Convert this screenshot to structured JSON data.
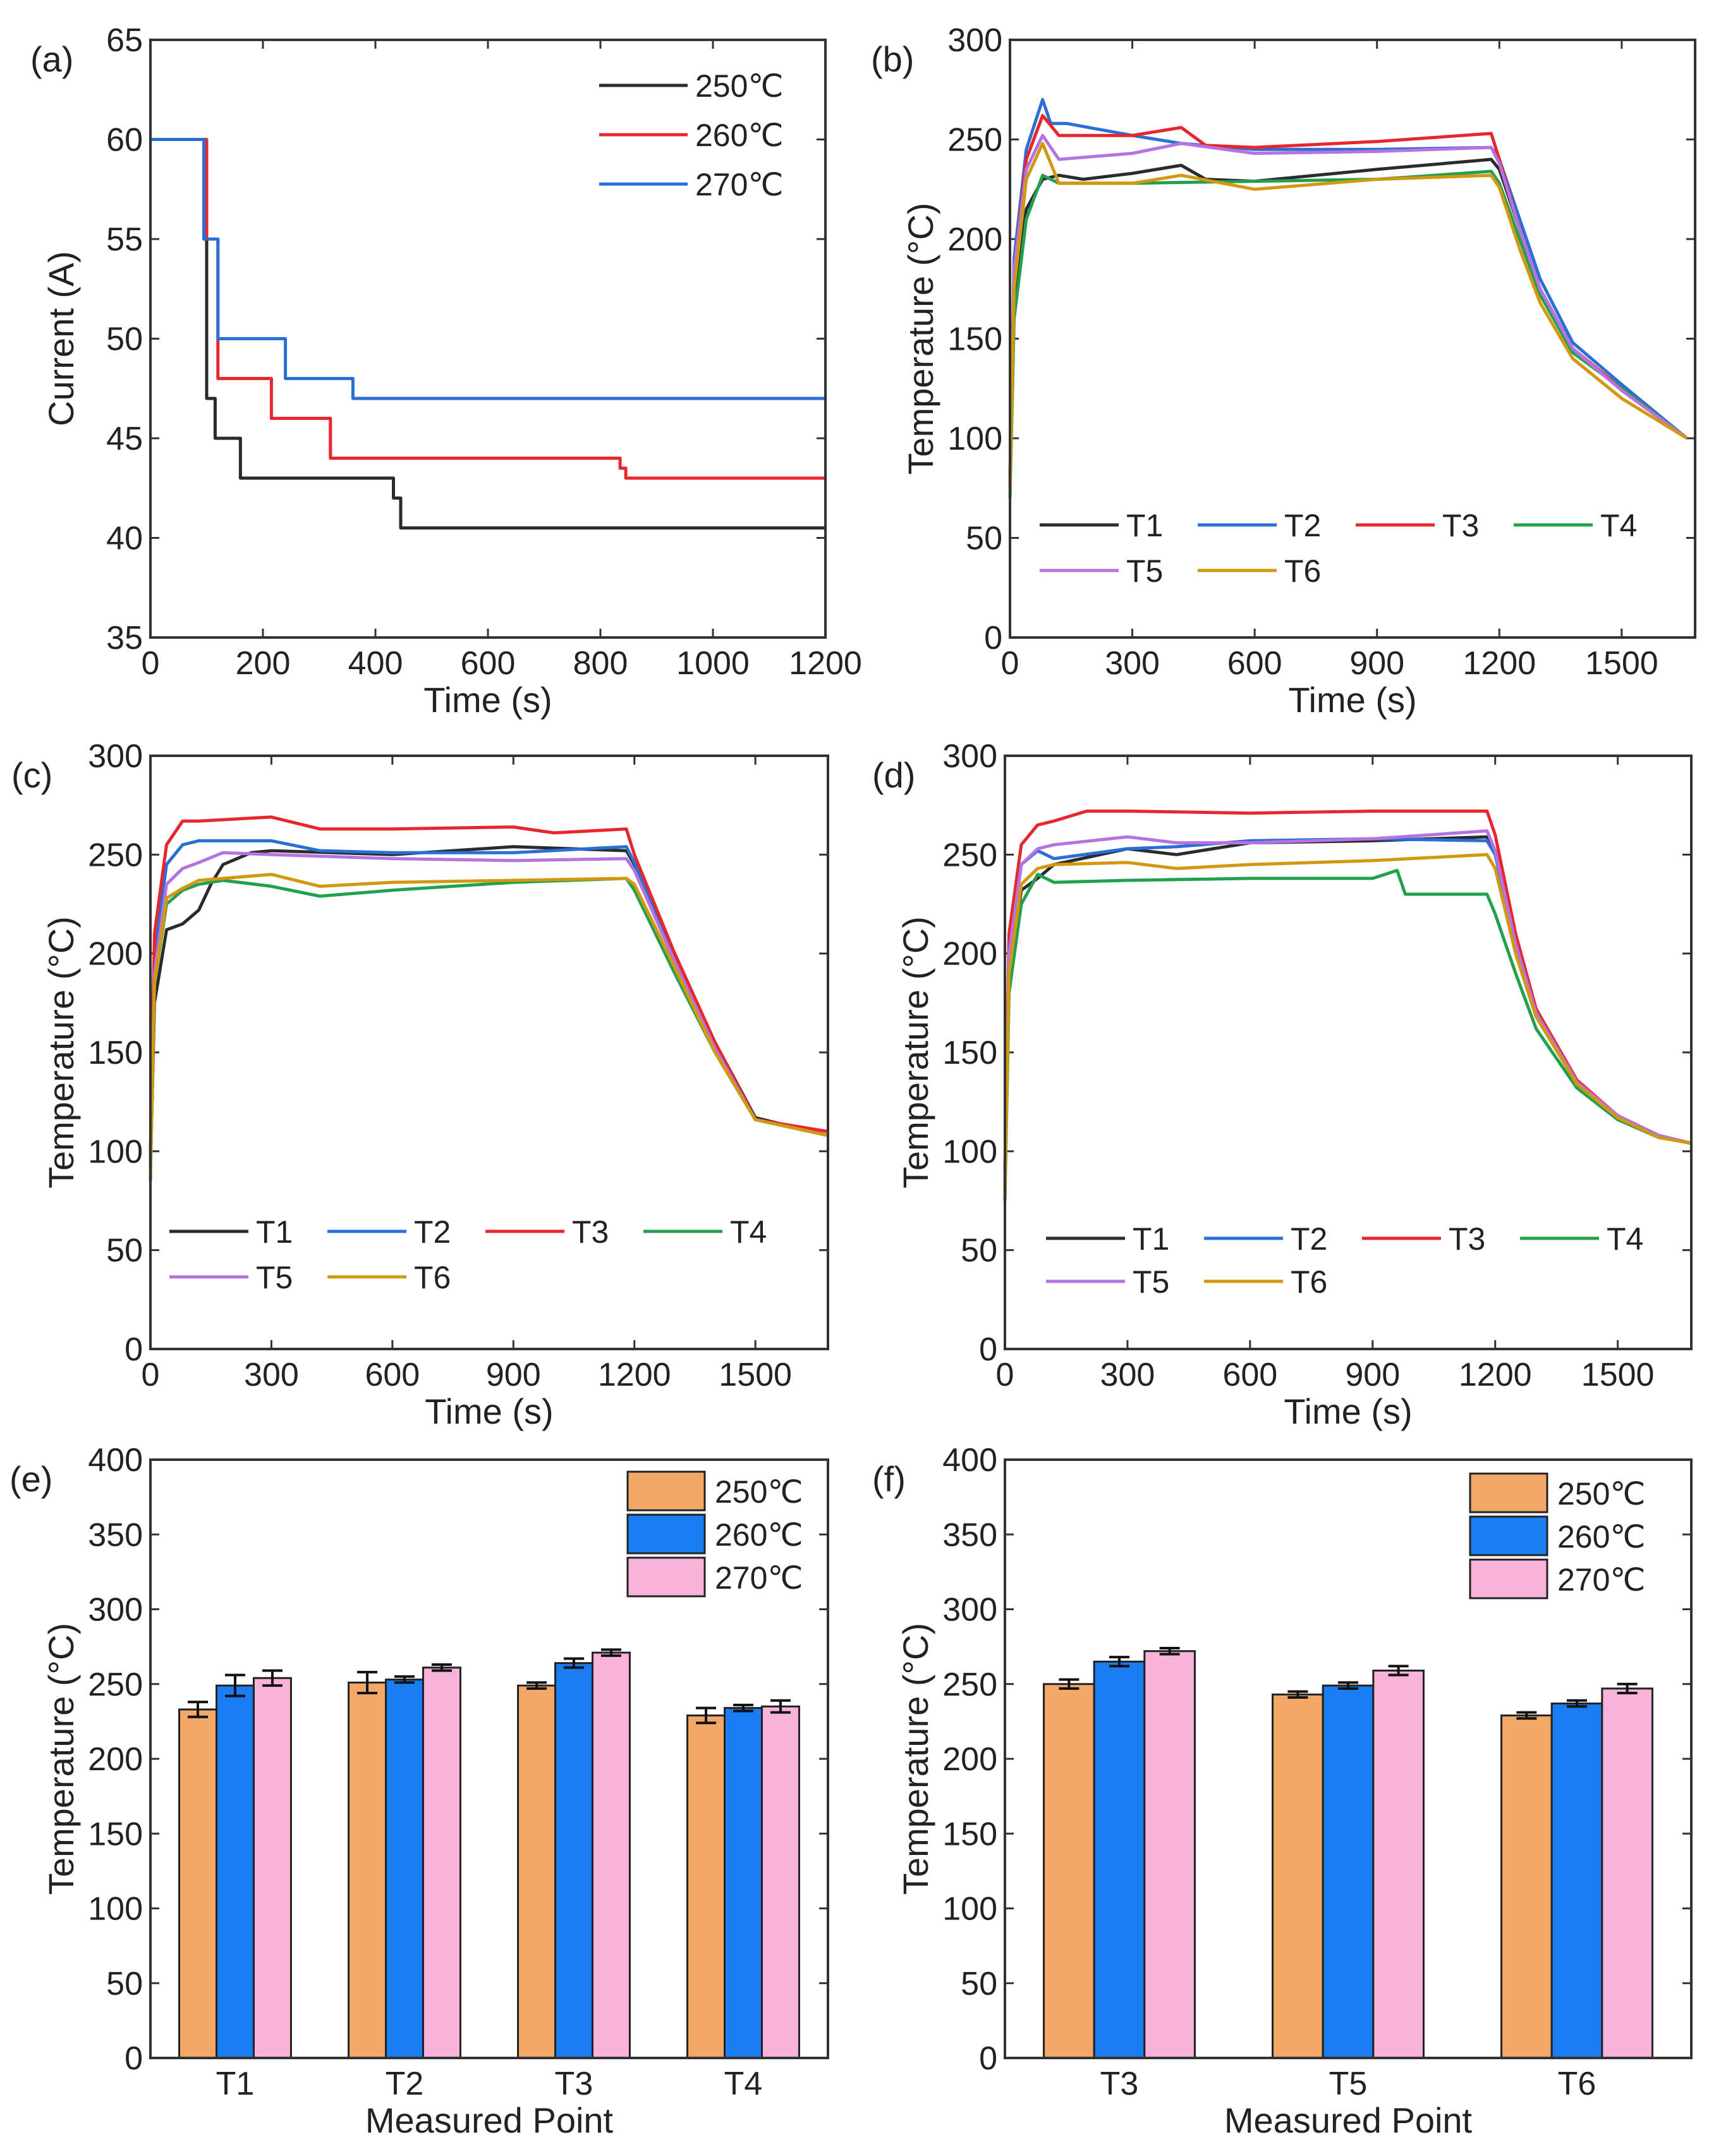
{
  "chart_data": [
    {
      "panel": "(a)",
      "type": "line",
      "xlabel": "Time (s)",
      "ylabel": "Current (A)",
      "xlim": [
        0,
        1200
      ],
      "ylim": [
        35,
        65
      ],
      "xticks": [
        0,
        200,
        400,
        600,
        800,
        1000,
        1200
      ],
      "yticks": [
        35,
        40,
        45,
        50,
        55,
        60,
        65
      ],
      "step": true,
      "series": [
        {
          "name": "250℃",
          "color": "#2b2b2b",
          "x": [
            0,
            80,
            95,
            100,
            115,
            160,
            420,
            432,
            445,
            1200
          ],
          "y": [
            60,
            60,
            55,
            47,
            45,
            43,
            43,
            42,
            40.5,
            40.5
          ]
        },
        {
          "name": "260℃",
          "color": "#e8262e",
          "x": [
            0,
            80,
            100,
            120,
            215,
            320,
            820,
            835,
            845,
            1200
          ],
          "y": [
            60,
            60,
            55,
            48,
            46,
            44,
            44,
            43.5,
            43,
            43
          ]
        },
        {
          "name": "270℃",
          "color": "#2a6fd6",
          "x": [
            0,
            80,
            95,
            120,
            240,
            360,
            1200
          ],
          "y": [
            60,
            60,
            55,
            50,
            48,
            47,
            47
          ]
        }
      ]
    },
    {
      "panel": "(b)",
      "type": "line",
      "xlabel": "Time (s)",
      "ylabel": "Temperature (°C)",
      "xlim": [
        0,
        1680
      ],
      "ylim": [
        0,
        300
      ],
      "xticks": [
        0,
        300,
        600,
        900,
        1200,
        1500
      ],
      "yticks": [
        0,
        50,
        100,
        150,
        200,
        250,
        300
      ],
      "step": false,
      "series": [
        {
          "name": "T1",
          "color": "#2b2b2b",
          "x": [
            0,
            10,
            40,
            80,
            120,
            180,
            300,
            420,
            480,
            600,
            900,
            1180,
            1200,
            1250,
            1300,
            1380,
            1500,
            1660
          ],
          "y": [
            75,
            170,
            215,
            230,
            232,
            230,
            233,
            237,
            230,
            229,
            235,
            240,
            235,
            205,
            175,
            145,
            125,
            100
          ]
        },
        {
          "name": "T2",
          "color": "#2a6fd6",
          "x": [
            0,
            10,
            40,
            80,
            100,
            140,
            300,
            420,
            600,
            900,
            1180,
            1200,
            1250,
            1300,
            1380,
            1500,
            1660
          ],
          "y": [
            80,
            190,
            245,
            270,
            258,
            258,
            252,
            248,
            245,
            245,
            246,
            240,
            210,
            180,
            148,
            127,
            100
          ]
        },
        {
          "name": "T3",
          "color": "#e8262e",
          "x": [
            0,
            10,
            40,
            80,
            120,
            300,
            420,
            480,
            600,
            900,
            1180,
            1200,
            1250,
            1300,
            1380,
            1500,
            1660
          ],
          "y": [
            80,
            185,
            240,
            262,
            252,
            252,
            256,
            247,
            246,
            249,
            253,
            240,
            205,
            175,
            145,
            125,
            100
          ]
        },
        {
          "name": "T4",
          "color": "#22a050",
          "x": [
            0,
            10,
            40,
            80,
            120,
            300,
            600,
            900,
            1180,
            1200,
            1250,
            1300,
            1380,
            1500,
            1660
          ],
          "y": [
            70,
            160,
            210,
            232,
            228,
            228,
            229,
            230,
            234,
            228,
            200,
            172,
            143,
            125,
            100
          ]
        },
        {
          "name": "T5",
          "color": "#b572e0",
          "x": [
            0,
            10,
            40,
            80,
            120,
            300,
            420,
            600,
            900,
            1180,
            1200,
            1250,
            1300,
            1380,
            1500,
            1660
          ],
          "y": [
            80,
            185,
            235,
            252,
            240,
            243,
            248,
            243,
            244,
            246,
            238,
            205,
            175,
            145,
            124,
            100
          ]
        },
        {
          "name": "T6",
          "color": "#d2980f",
          "x": [
            0,
            10,
            40,
            80,
            120,
            300,
            420,
            600,
            900,
            1180,
            1200,
            1250,
            1300,
            1380,
            1500,
            1660
          ],
          "y": [
            75,
            175,
            230,
            248,
            228,
            228,
            232,
            225,
            230,
            232,
            226,
            195,
            168,
            140,
            120,
            100
          ]
        }
      ]
    },
    {
      "panel": "(c)",
      "type": "line",
      "xlabel": "Time (s)",
      "ylabel": "Temperature (°C)",
      "xlim": [
        0,
        1680
      ],
      "ylim": [
        0,
        300
      ],
      "xticks": [
        0,
        300,
        600,
        900,
        1200,
        1500
      ],
      "yticks": [
        0,
        50,
        100,
        150,
        200,
        250,
        300
      ],
      "step": false,
      "series": [
        {
          "name": "T1",
          "color": "#2b2b2b",
          "x": [
            0,
            10,
            40,
            80,
            120,
            150,
            180,
            250,
            300,
            600,
            900,
            1180,
            1200,
            1300,
            1400,
            1500,
            1680
          ],
          "y": [
            90,
            175,
            212,
            215,
            222,
            235,
            245,
            251,
            252,
            250,
            254,
            252,
            245,
            200,
            155,
            117,
            108
          ]
        },
        {
          "name": "T2",
          "color": "#2a6fd6",
          "x": [
            0,
            10,
            40,
            80,
            120,
            300,
            420,
            600,
            900,
            1180,
            1200,
            1300,
            1400,
            1500,
            1680
          ],
          "y": [
            95,
            200,
            245,
            255,
            257,
            257,
            252,
            251,
            251,
            254,
            246,
            198,
            152,
            116,
            108
          ]
        },
        {
          "name": "T3",
          "color": "#e8262e",
          "x": [
            0,
            10,
            40,
            80,
            120,
            300,
            420,
            600,
            900,
            1000,
            1180,
            1200,
            1300,
            1400,
            1500,
            1680
          ],
          "y": [
            100,
            210,
            255,
            267,
            267,
            269,
            263,
            263,
            264,
            261,
            263,
            250,
            200,
            155,
            116,
            110
          ]
        },
        {
          "name": "T4",
          "color": "#22a050",
          "x": [
            0,
            10,
            40,
            80,
            120,
            180,
            300,
            420,
            600,
            900,
            1180,
            1200,
            1300,
            1400,
            1500,
            1680
          ],
          "y": [
            85,
            185,
            225,
            232,
            235,
            237,
            234,
            229,
            232,
            236,
            238,
            232,
            190,
            150,
            116,
            108
          ]
        },
        {
          "name": "T5",
          "color": "#b572e0",
          "x": [
            0,
            10,
            40,
            80,
            120,
            180,
            300,
            600,
            900,
            1180,
            1200,
            1300,
            1400,
            1500,
            1680
          ],
          "y": [
            90,
            190,
            235,
            243,
            246,
            251,
            250,
            248,
            247,
            248,
            242,
            196,
            152,
            116,
            108
          ]
        },
        {
          "name": "T6",
          "color": "#d2980f",
          "x": [
            0,
            10,
            40,
            80,
            120,
            300,
            420,
            600,
            900,
            1180,
            1200,
            1300,
            1400,
            1500,
            1680
          ],
          "y": [
            88,
            185,
            228,
            233,
            237,
            240,
            234,
            236,
            237,
            238,
            235,
            193,
            150,
            116,
            108
          ]
        }
      ]
    },
    {
      "panel": "(d)",
      "type": "line",
      "xlabel": "Time (s)",
      "ylabel": "Temperature (°C)",
      "xlim": [
        0,
        1680
      ],
      "ylim": [
        0,
        300
      ],
      "xticks": [
        0,
        300,
        600,
        900,
        1200,
        1500
      ],
      "yticks": [
        0,
        50,
        100,
        150,
        200,
        250,
        300
      ],
      "step": false,
      "series": [
        {
          "name": "T1",
          "color": "#2b2b2b",
          "x": [
            0,
            10,
            40,
            80,
            120,
            300,
            420,
            600,
            900,
            1180,
            1200,
            1250,
            1300,
            1400,
            1500,
            1600,
            1680
          ],
          "y": [
            80,
            190,
            232,
            238,
            245,
            253,
            250,
            256,
            257,
            259,
            252,
            205,
            170,
            135,
            118,
            108,
            104
          ]
        },
        {
          "name": "T2",
          "color": "#2a6fd6",
          "x": [
            0,
            10,
            40,
            80,
            120,
            300,
            420,
            600,
            900,
            1180,
            1200,
            1250,
            1300,
            1400,
            1500,
            1600,
            1680
          ],
          "y": [
            85,
            200,
            245,
            252,
            248,
            253,
            254,
            257,
            258,
            257,
            250,
            205,
            170,
            135,
            118,
            108,
            104
          ]
        },
        {
          "name": "T3",
          "color": "#e8262e",
          "x": [
            0,
            10,
            40,
            80,
            120,
            200,
            300,
            600,
            900,
            1180,
            1200,
            1250,
            1300,
            1400,
            1500,
            1600,
            1680
          ],
          "y": [
            90,
            210,
            255,
            265,
            267,
            272,
            272,
            271,
            272,
            272,
            260,
            210,
            172,
            136,
            118,
            108,
            104
          ]
        },
        {
          "name": "T4",
          "color": "#22a050",
          "x": [
            0,
            10,
            40,
            80,
            120,
            300,
            600,
            900,
            960,
            980,
            1180,
            1200,
            1250,
            1300,
            1400,
            1500,
            1600,
            1680
          ],
          "y": [
            75,
            180,
            225,
            240,
            236,
            237,
            238,
            238,
            242,
            230,
            230,
            220,
            190,
            162,
            132,
            116,
            107,
            104
          ]
        },
        {
          "name": "T5",
          "color": "#b572e0",
          "x": [
            0,
            10,
            40,
            80,
            120,
            300,
            420,
            600,
            900,
            1180,
            1200,
            1250,
            1300,
            1400,
            1500,
            1600,
            1680
          ],
          "y": [
            85,
            200,
            245,
            253,
            255,
            259,
            256,
            256,
            258,
            262,
            252,
            205,
            170,
            135,
            118,
            108,
            104
          ]
        },
        {
          "name": "T6",
          "color": "#d2980f",
          "x": [
            0,
            10,
            40,
            80,
            120,
            300,
            420,
            600,
            900,
            1180,
            1200,
            1250,
            1300,
            1400,
            1500,
            1600,
            1680
          ],
          "y": [
            80,
            190,
            235,
            243,
            245,
            246,
            243,
            245,
            247,
            250,
            243,
            200,
            168,
            134,
            117,
            107,
            104
          ]
        }
      ]
    },
    {
      "panel": "(e)",
      "type": "bar",
      "xlabel": "Measured Point",
      "ylabel": "Temperature (°C)",
      "ylim": [
        0,
        400
      ],
      "yticks": [
        0,
        50,
        100,
        150,
        200,
        250,
        300,
        350,
        400
      ],
      "categories": [
        "T1",
        "T2",
        "T3",
        "T4"
      ],
      "series": [
        {
          "name": "250℃",
          "color": "#f2a867",
          "values": [
            233,
            251,
            249,
            229
          ],
          "errors": [
            5,
            7,
            2,
            5
          ]
        },
        {
          "name": "260℃",
          "color": "#1a7ef2",
          "values": [
            249,
            253,
            264,
            234
          ],
          "errors": [
            7,
            2,
            3,
            2
          ]
        },
        {
          "name": "270℃",
          "color": "#f9b3da",
          "values": [
            254,
            261,
            271,
            235
          ],
          "errors": [
            5,
            2,
            2,
            4
          ]
        }
      ]
    },
    {
      "panel": "(f)",
      "type": "bar",
      "xlabel": "Measured Point",
      "ylabel": "Temperature (°C)",
      "ylim": [
        0,
        400
      ],
      "yticks": [
        0,
        50,
        100,
        150,
        200,
        250,
        300,
        350,
        400
      ],
      "categories": [
        "T3",
        "T5",
        "T6"
      ],
      "series": [
        {
          "name": "250℃",
          "color": "#f2a867",
          "values": [
            250,
            243,
            229
          ],
          "errors": [
            3,
            2,
            2
          ]
        },
        {
          "name": "260℃",
          "color": "#1a7ef2",
          "values": [
            265,
            249,
            237
          ],
          "errors": [
            3,
            2,
            2
          ]
        },
        {
          "name": "270℃",
          "color": "#f9b3da",
          "values": [
            272,
            259,
            247
          ],
          "errors": [
            2,
            3,
            3
          ]
        }
      ]
    }
  ]
}
